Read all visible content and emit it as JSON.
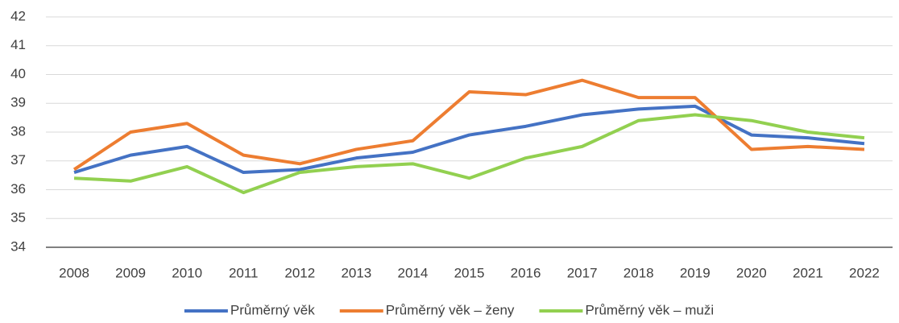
{
  "chart_data": {
    "type": "line",
    "categories": [
      "2008",
      "2009",
      "2010",
      "2011",
      "2012",
      "2013",
      "2014",
      "2015",
      "2016",
      "2017",
      "2018",
      "2019",
      "2020",
      "2021",
      "2022"
    ],
    "series": [
      {
        "name": "Průměrný věk",
        "color": "#4472c4",
        "values": [
          36.6,
          37.2,
          37.5,
          36.6,
          36.7,
          37.1,
          37.3,
          37.9,
          38.2,
          38.6,
          38.8,
          38.9,
          37.9,
          37.8,
          37.6
        ]
      },
      {
        "name": "Průměrný věk – ženy",
        "color": "#ed7d31",
        "values": [
          36.7,
          38.0,
          38.3,
          37.2,
          36.9,
          37.4,
          37.7,
          39.4,
          39.3,
          39.8,
          39.2,
          39.2,
          37.4,
          37.5,
          37.4
        ]
      },
      {
        "name": "Průměrný věk – muži",
        "color": "#92d050",
        "values": [
          36.4,
          36.3,
          36.8,
          35.9,
          36.6,
          36.8,
          36.9,
          36.4,
          37.1,
          37.5,
          38.4,
          38.6,
          38.4,
          38.0,
          37.8
        ]
      }
    ],
    "ylim": [
      34,
      42
    ],
    "yticks": [
      34,
      35,
      36,
      37,
      38,
      39,
      40,
      41,
      42
    ],
    "grid": true,
    "legend": "bottom"
  }
}
